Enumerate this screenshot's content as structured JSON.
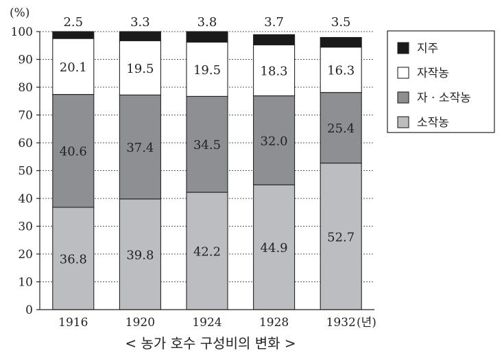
{
  "chart_data": {
    "type": "bar",
    "stacked": true,
    "title": "< 농가 호수 구성비의 변화 >",
    "y_unit_label": "(%)",
    "x_unit_label": "(년)",
    "categories": [
      "1916",
      "1920",
      "1924",
      "1928",
      "1932"
    ],
    "ylim": [
      0,
      100
    ],
    "yticks": [
      0,
      10,
      20,
      30,
      40,
      50,
      60,
      70,
      80,
      90,
      100
    ],
    "grid": "horizontal dotted",
    "legend_position": "right",
    "series": [
      {
        "name": "소작농",
        "values": [
          36.8,
          39.8,
          42.2,
          44.9,
          52.7
        ],
        "color": "#bcbdc1"
      },
      {
        "name": "자 · 소작농",
        "values": [
          40.6,
          37.4,
          34.5,
          32.0,
          25.4
        ],
        "color": "#8e8f93"
      },
      {
        "name": "자작농",
        "values": [
          20.1,
          19.5,
          19.5,
          18.3,
          16.3
        ],
        "color": "#ffffff"
      },
      {
        "name": "지주",
        "values": [
          2.5,
          3.3,
          3.8,
          3.7,
          3.5
        ],
        "color": "#1a1a1a"
      }
    ],
    "value_labels": {
      "소작농": [
        "36.8",
        "39.8",
        "42.2",
        "44.9",
        "52.7"
      ],
      "자 · 소작농": [
        "40.6",
        "37.4",
        "34.5",
        "32.0",
        "25.4"
      ],
      "자작농": [
        "20.1",
        "19.5",
        "19.5",
        "18.3",
        "16.3"
      ],
      "지주": [
        "2.5",
        "3.3",
        "3.8",
        "3.7",
        "3.5"
      ]
    },
    "legend_order": [
      "지주",
      "자작농",
      "자 · 소작농",
      "소작농"
    ]
  }
}
